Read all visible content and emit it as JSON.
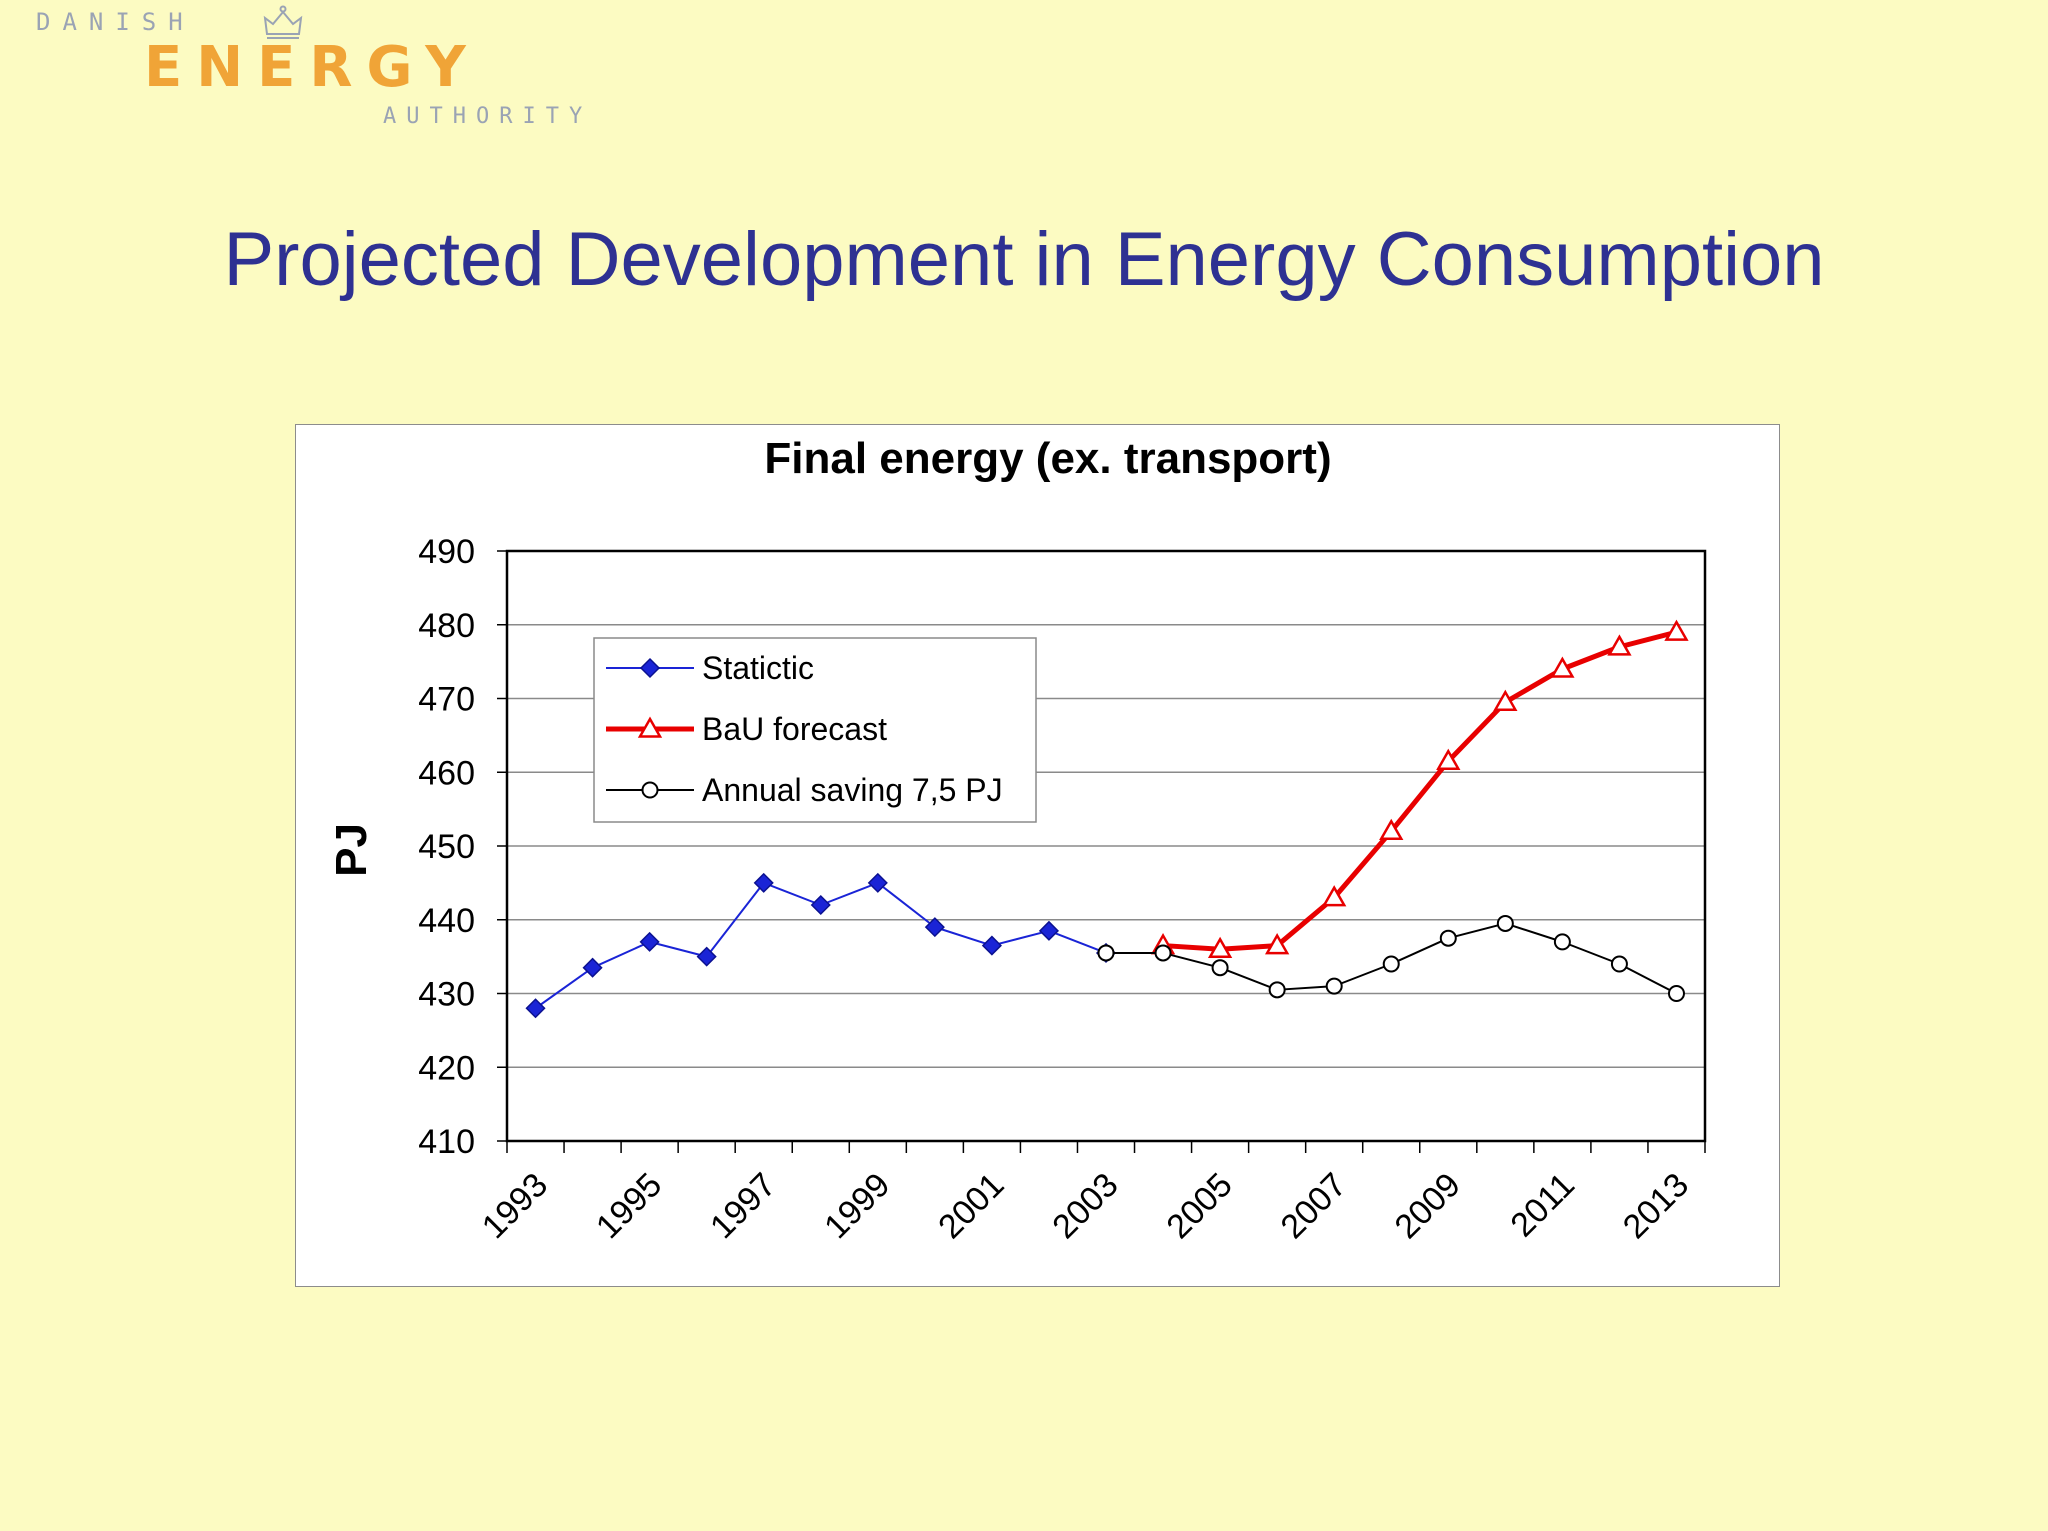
{
  "logo": {
    "line1": "DANISH",
    "line2": "ENERGY",
    "line3": "AUTHORITY",
    "crown_icon": "crown-icon"
  },
  "slide": {
    "title": "Projected Development in Energy Consumption"
  },
  "colors": {
    "background": "#fcfbc2",
    "title": "#2e3192",
    "statistic": "#1a24d6",
    "bau": "#e80000",
    "saving": "#000000",
    "logo_orange": "#f0a437",
    "logo_grey": "#9aa3b4"
  },
  "chart_data": {
    "type": "line",
    "title": "Final energy (ex. transport)",
    "xlabel": "",
    "ylabel": "PJ",
    "ylim": [
      410,
      490
    ],
    "y_ticks": [
      410,
      420,
      430,
      440,
      450,
      460,
      470,
      480,
      490
    ],
    "x": [
      1993,
      1994,
      1995,
      1996,
      1997,
      1998,
      1999,
      2000,
      2001,
      2002,
      2003,
      2004,
      2005,
      2006,
      2007,
      2008,
      2009,
      2010,
      2011,
      2012,
      2013
    ],
    "x_tick_labels": [
      "1993",
      "1995",
      "1997",
      "1999",
      "2001",
      "2003",
      "2005",
      "2007",
      "2009",
      "2011",
      "2013"
    ],
    "grid": true,
    "legend_position": "top-left",
    "series": [
      {
        "name": "Statictic",
        "marker": "diamond",
        "x": [
          1993,
          1994,
          1995,
          1996,
          1997,
          1998,
          1999,
          2000,
          2001,
          2002,
          2003
        ],
        "values": [
          428,
          433.5,
          437,
          435,
          445,
          442,
          445,
          439,
          436.5,
          438.5,
          435.5
        ]
      },
      {
        "name": "BaU forecast",
        "marker": "triangle",
        "x": [
          2004,
          2005,
          2006,
          2007,
          2008,
          2009,
          2010,
          2011,
          2012,
          2013
        ],
        "values": [
          436.5,
          436,
          436.5,
          443,
          452,
          461.5,
          469.5,
          474,
          477,
          479
        ]
      },
      {
        "name": "Annual saving 7,5 PJ",
        "marker": "circle",
        "x": [
          2003,
          2004,
          2005,
          2006,
          2007,
          2008,
          2009,
          2010,
          2011,
          2012,
          2013
        ],
        "values": [
          435.5,
          435.5,
          433.5,
          430.5,
          431,
          434,
          437.5,
          439.5,
          437,
          434,
          430
        ]
      }
    ]
  }
}
